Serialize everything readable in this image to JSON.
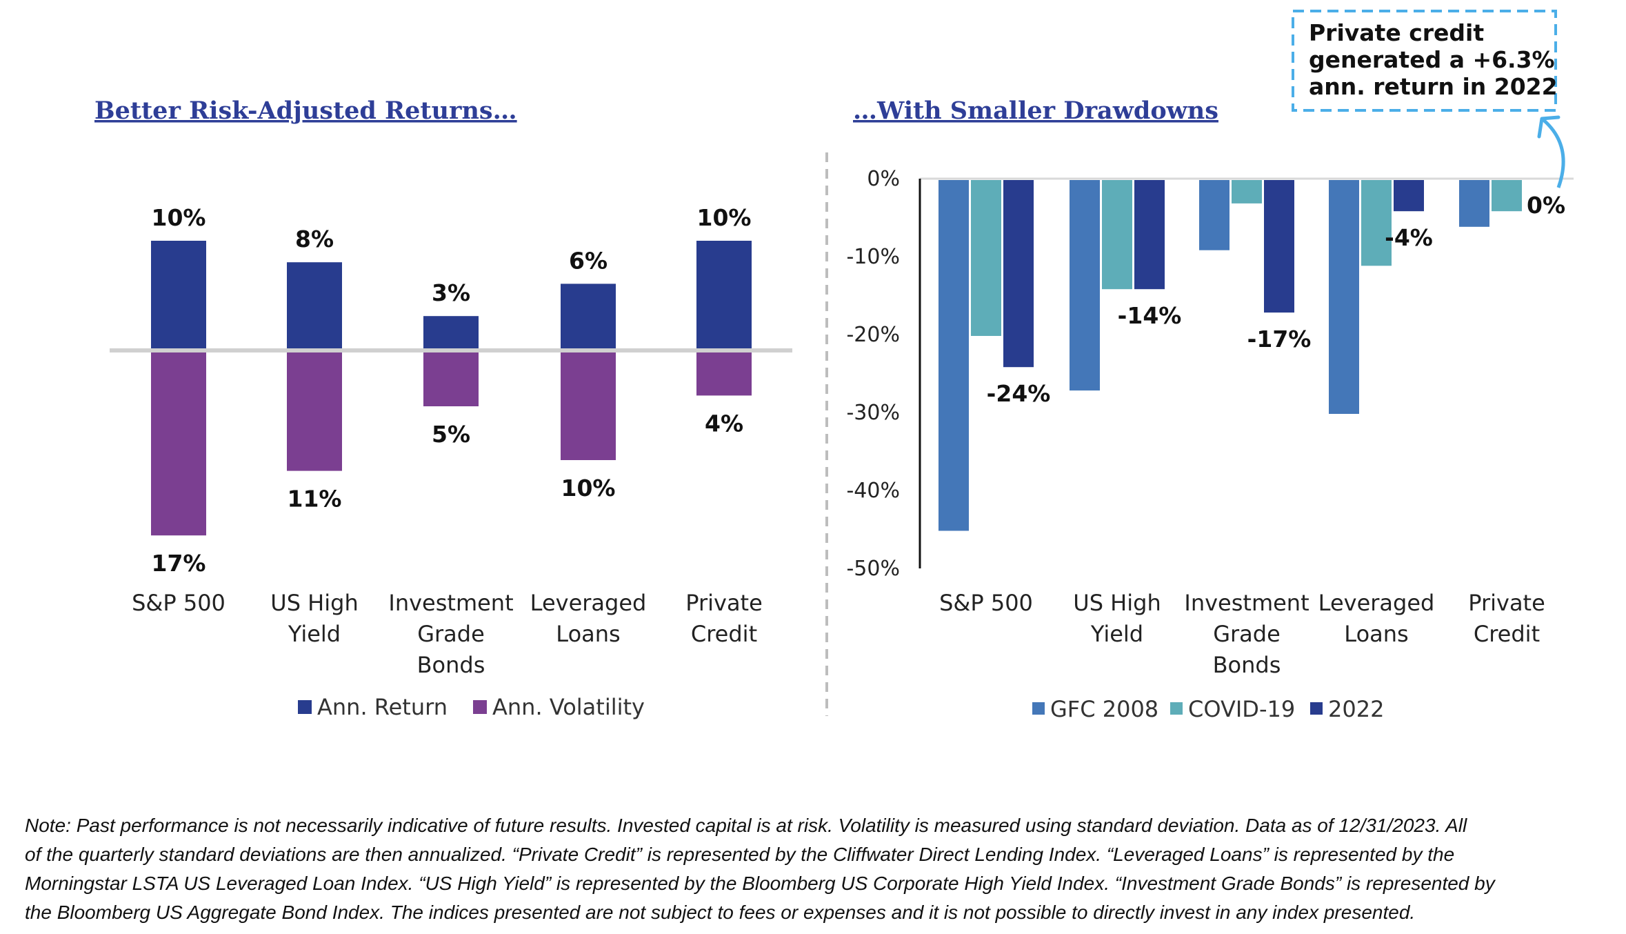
{
  "colors": {
    "return": "#283C8E",
    "volatility": "#7B3F91",
    "gfc": "#4477B8",
    "covid": "#5EADB8",
    "y2022": "#283C8E",
    "annotation_border": "#4BAEE8"
  },
  "chart_data": [
    {
      "type": "bar",
      "title": "Better Risk-Adjusted Returns…",
      "categories": [
        [
          "S&P 500"
        ],
        [
          "US High",
          "Yield"
        ],
        [
          "Investment",
          "Grade",
          "Bonds"
        ],
        [
          "Leveraged",
          "Loans"
        ],
        [
          "Private",
          "Credit"
        ]
      ],
      "series": [
        {
          "name": "Ann. Return",
          "values": [
            10,
            8,
            3,
            6,
            10
          ],
          "labels": [
            "10%",
            "8%",
            "3%",
            "6%",
            "10%"
          ],
          "direction": "up"
        },
        {
          "name": "Ann. Volatility",
          "values": [
            17,
            11,
            5,
            10,
            4
          ],
          "labels": [
            "17%",
            "11%",
            "5%",
            "10%",
            "4%"
          ],
          "direction": "down"
        }
      ],
      "legend": "bottom",
      "grid": false
    },
    {
      "type": "bar",
      "title": "…With Smaller Drawdowns",
      "categories": [
        [
          "S&P 500"
        ],
        [
          "US High",
          "Yield"
        ],
        [
          "Investment",
          "Grade",
          "Bonds"
        ],
        [
          "Leveraged",
          "Loans"
        ],
        [
          "Private",
          "Credit"
        ]
      ],
      "series": [
        {
          "name": "GFC 2008",
          "values": [
            -45,
            -27,
            -9,
            -30,
            -6
          ]
        },
        {
          "name": "COVID-19",
          "values": [
            -20,
            -14,
            -3,
            -11,
            -4
          ]
        },
        {
          "name": "2022",
          "values": [
            -24,
            -14,
            -17,
            -4,
            0
          ],
          "labels": [
            "-24%",
            "-14%",
            "-17%",
            "-4%",
            "0%"
          ]
        }
      ],
      "ylim": [
        -50,
        0
      ],
      "yticks": [
        "0%",
        "-10%",
        "-20%",
        "-30%",
        "-40%",
        "-50%"
      ],
      "legend": "bottom",
      "grid": false,
      "annotation": [
        "Private credit",
        "generated a +6.3%",
        "ann. return in 2022"
      ]
    }
  ],
  "note": [
    "Note: Past performance is not necessarily indicative of future results. Invested capital is at risk. Volatility is measured using standard deviation. Data as of 12/31/2023. All",
    "of the quarterly standard deviations are then annualized. “Private Credit” is represented by the Cliffwater Direct Lending Index. “Leveraged Loans” is represented by the",
    "Morningstar LSTA US Leveraged Loan Index. “US High Yield” is represented by the Bloomberg US Corporate High Yield Index. “Investment Grade Bonds” is represented by",
    "the Bloomberg US Aggregate Bond Index. The indices presented are not subject to fees or expenses and it is not possible to directly invest in any index presented."
  ]
}
